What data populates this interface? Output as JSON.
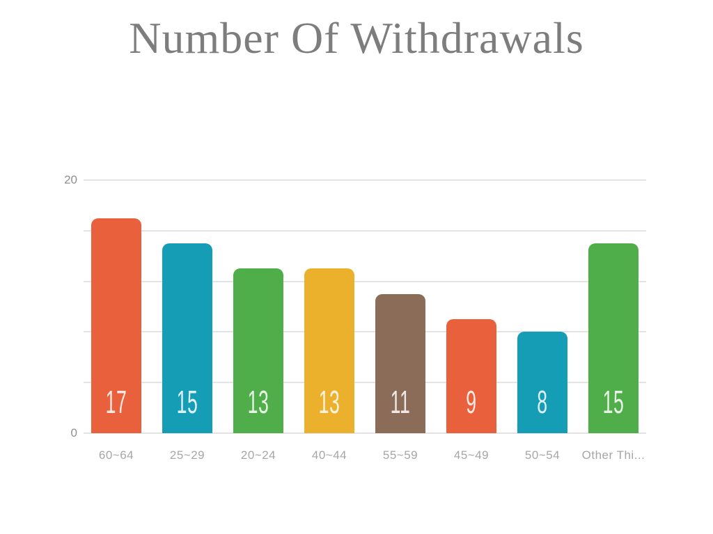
{
  "chart_data": {
    "type": "bar",
    "title": "Number Of Withdrawals",
    "categories": [
      "60~64",
      "25~29",
      "20~24",
      "40~44",
      "55~59",
      "45~49",
      "50~54",
      "Other Thi..."
    ],
    "values": [
      17,
      15,
      13,
      13,
      11,
      9,
      8,
      15
    ],
    "bar_colors": [
      "#e8613c",
      "#169db6",
      "#4fae49",
      "#ebb12d",
      "#8b6c59",
      "#e8613c",
      "#169db6",
      "#4fae49"
    ],
    "xlabel": "",
    "ylabel": "",
    "ylim": [
      0,
      20
    ],
    "gridline_step": 4,
    "y_axis_tick_labels": [
      {
        "value": 20,
        "label": "20"
      },
      {
        "value": 0,
        "label": "0"
      }
    ],
    "grid": true,
    "legend": "none",
    "palette": {
      "background": "#ffffff",
      "title_color": "#7d7d7d",
      "axis_tick_color": "#8f8f8f",
      "category_label_color": "#a6a6a6",
      "gridline_color": "#e3e3e3",
      "value_label_color": "rgba(255,255,255,0.85)"
    }
  }
}
